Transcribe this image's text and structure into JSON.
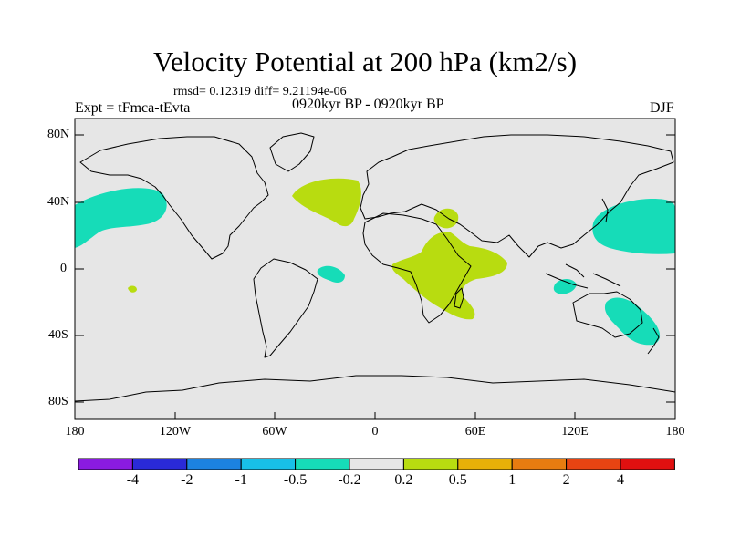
{
  "title": "Velocity Potential at 200 hPa (km2/s)",
  "stats_line": "rmsd= 0.12319  diff= 9.21194e-06",
  "left_label": "Expt = tFmca-tEvta",
  "center_label": "0920kyr BP - 0920kyr BP",
  "right_label": "DJF",
  "lat_ticks": [
    "80N",
    "40N",
    "0",
    "40S",
    "80S"
  ],
  "lon_ticks": [
    "180",
    "120W",
    "60W",
    "0",
    "60E",
    "120E",
    "180"
  ],
  "colorbar": {
    "labels": [
      "-4",
      "-2",
      "-1",
      "-0.5",
      "-0.2",
      "0.2",
      "0.5",
      "1",
      "2",
      "4"
    ],
    "colors": [
      "#8a1be0",
      "#2a2ad8",
      "#1c82e0",
      "#18c0e8",
      "#16dcb8",
      "#e6e6e6",
      "#b8dc10",
      "#e8b008",
      "#e87c10",
      "#e84412",
      "#e01010"
    ]
  },
  "colors": {
    "background_field": "#e6e6e6",
    "negative_anomaly": "#16dcb8",
    "positive_anomaly": "#b8dc10",
    "coastline": "#000000"
  }
}
